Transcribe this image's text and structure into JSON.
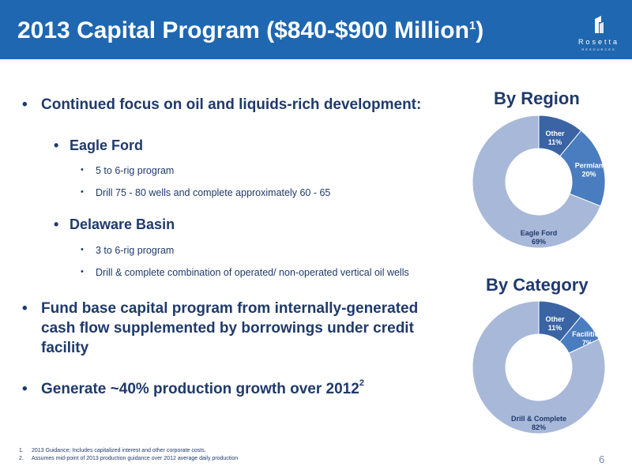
{
  "header": {
    "title": "2013 Capital Program ($840-$900 Million",
    "title_sup": "1",
    "title_close": ")",
    "logo_text": "Rosetta",
    "logo_sub": "RESOURCES"
  },
  "bullets": {
    "focus": "Continued focus on oil and liquids-rich development:",
    "eagle_ford": {
      "heading": "Eagle Ford",
      "items": [
        "5 to 6-rig program",
        "Drill 75 - 80 wells and complete approximately 60 - 65"
      ]
    },
    "delaware": {
      "heading": "Delaware Basin",
      "items": [
        "3 to 6-rig program",
        "Drill & complete combination of operated/ non-operated vertical oil wells"
      ]
    },
    "fund": [
      "Fund base capital program from internally-generated",
      "cash flow supplemented by borrowings under credit",
      "facility"
    ],
    "growth": "Generate ~40% production growth over 2012",
    "growth_sup": "2"
  },
  "bullet_glyph": "•",
  "chart_data": [
    {
      "type": "pie",
      "title": "By Region",
      "donut": true,
      "categories": [
        "Other",
        "Permian",
        "Eagle Ford"
      ],
      "values": [
        11,
        20,
        69
      ],
      "labels": [
        "11%",
        "20%",
        "69%"
      ],
      "colors": [
        "#3a64a3",
        "#4a7cc0",
        "#a8b8d8"
      ]
    },
    {
      "type": "pie",
      "title": "By Category",
      "donut": true,
      "categories": [
        "Other",
        "Facilities",
        "Drill & Complete"
      ],
      "values": [
        11,
        7,
        82
      ],
      "labels": [
        "11%",
        "7%",
        "82%"
      ],
      "colors": [
        "#3a64a3",
        "#4a7cc0",
        "#a8b8d8"
      ]
    }
  ],
  "footnotes": [
    {
      "num": "1.",
      "text": "2013 Guidance; Includes capitalized interest and other corporate costs."
    },
    {
      "num": "2.",
      "text": "Assumes mid-point of 2013 production guidance over 2012 average daily production"
    }
  ],
  "page_number": "6"
}
